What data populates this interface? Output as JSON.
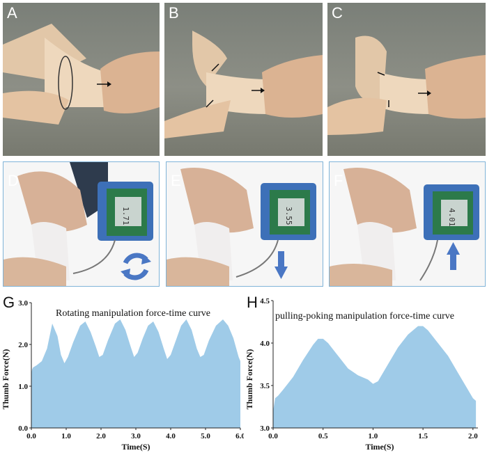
{
  "panels": {
    "A": "A",
    "B": "B",
    "C": "C",
    "D": "D",
    "E": "E",
    "F": "F",
    "G": "G",
    "H": "H"
  },
  "devices": {
    "D": {
      "reading": "1.71",
      "unit": "N"
    },
    "E": {
      "reading": "3.55",
      "unit": "N"
    },
    "F": {
      "reading": "4.01",
      "unit": "N"
    }
  },
  "colors": {
    "fill": "#9fcbe8",
    "arrow": "#4a77c4",
    "frame": "#7fb3d8"
  },
  "chart_data": [
    {
      "type": "area",
      "panel": "G",
      "title": "Rotating manipulation force-time  curve",
      "xlabel": "Time(S)",
      "ylabel": "Thumb Force(N)",
      "xlim": [
        0,
        6
      ],
      "ylim": [
        0,
        3
      ],
      "xticks": [
        "0.0",
        "1.0",
        "2.0",
        "3.0",
        "4.0",
        "5.0",
        "6.0"
      ],
      "yticks": [
        "0.0",
        "1.0",
        "2.0",
        "3.0"
      ],
      "x": [
        0.0,
        0.02,
        0.05,
        0.15,
        0.3,
        0.45,
        0.6,
        0.75,
        0.85,
        0.95,
        1.05,
        1.2,
        1.4,
        1.55,
        1.7,
        1.85,
        1.95,
        2.05,
        2.2,
        2.4,
        2.55,
        2.7,
        2.85,
        2.95,
        3.05,
        3.2,
        3.35,
        3.5,
        3.65,
        3.8,
        3.9,
        4.0,
        4.15,
        4.3,
        4.45,
        4.6,
        4.75,
        4.85,
        4.95,
        5.1,
        5.3,
        5.5,
        5.65,
        5.8,
        5.95,
        6.0
      ],
      "values": [
        1.3,
        1.4,
        1.45,
        1.5,
        1.6,
        1.9,
        2.5,
        2.2,
        1.75,
        1.55,
        1.7,
        2.05,
        2.45,
        2.55,
        2.3,
        1.95,
        1.7,
        1.75,
        2.1,
        2.5,
        2.6,
        2.35,
        1.95,
        1.7,
        1.8,
        2.15,
        2.45,
        2.55,
        2.3,
        1.9,
        1.65,
        1.75,
        2.1,
        2.45,
        2.6,
        2.35,
        1.9,
        1.7,
        1.75,
        2.1,
        2.45,
        2.6,
        2.45,
        2.15,
        1.7,
        1.6
      ]
    },
    {
      "type": "area",
      "panel": "H",
      "title": "pulling-poking manipulation force-time  curve",
      "xlabel": "Time(S)",
      "ylabel": "Thumb Force(N)",
      "xlim": [
        0,
        2.05
      ],
      "ylim": [
        3.0,
        4.5
      ],
      "xticks": [
        "0.0",
        "0.5",
        "1.0",
        "1.5",
        "2.0"
      ],
      "yticks": [
        "3.0",
        "3.5",
        "4.0",
        "4.5"
      ],
      "x": [
        0.0,
        0.02,
        0.05,
        0.1,
        0.2,
        0.3,
        0.4,
        0.45,
        0.5,
        0.55,
        0.65,
        0.75,
        0.85,
        0.95,
        1.0,
        1.05,
        1.15,
        1.25,
        1.35,
        1.45,
        1.5,
        1.55,
        1.65,
        1.75,
        1.85,
        1.95,
        2.0,
        2.03
      ],
      "values": [
        3.2,
        3.35,
        3.38,
        3.45,
        3.6,
        3.8,
        3.98,
        4.05,
        4.05,
        4.0,
        3.85,
        3.7,
        3.62,
        3.57,
        3.52,
        3.55,
        3.75,
        3.95,
        4.1,
        4.2,
        4.2,
        4.15,
        4.0,
        3.85,
        3.65,
        3.45,
        3.35,
        3.32
      ]
    }
  ]
}
